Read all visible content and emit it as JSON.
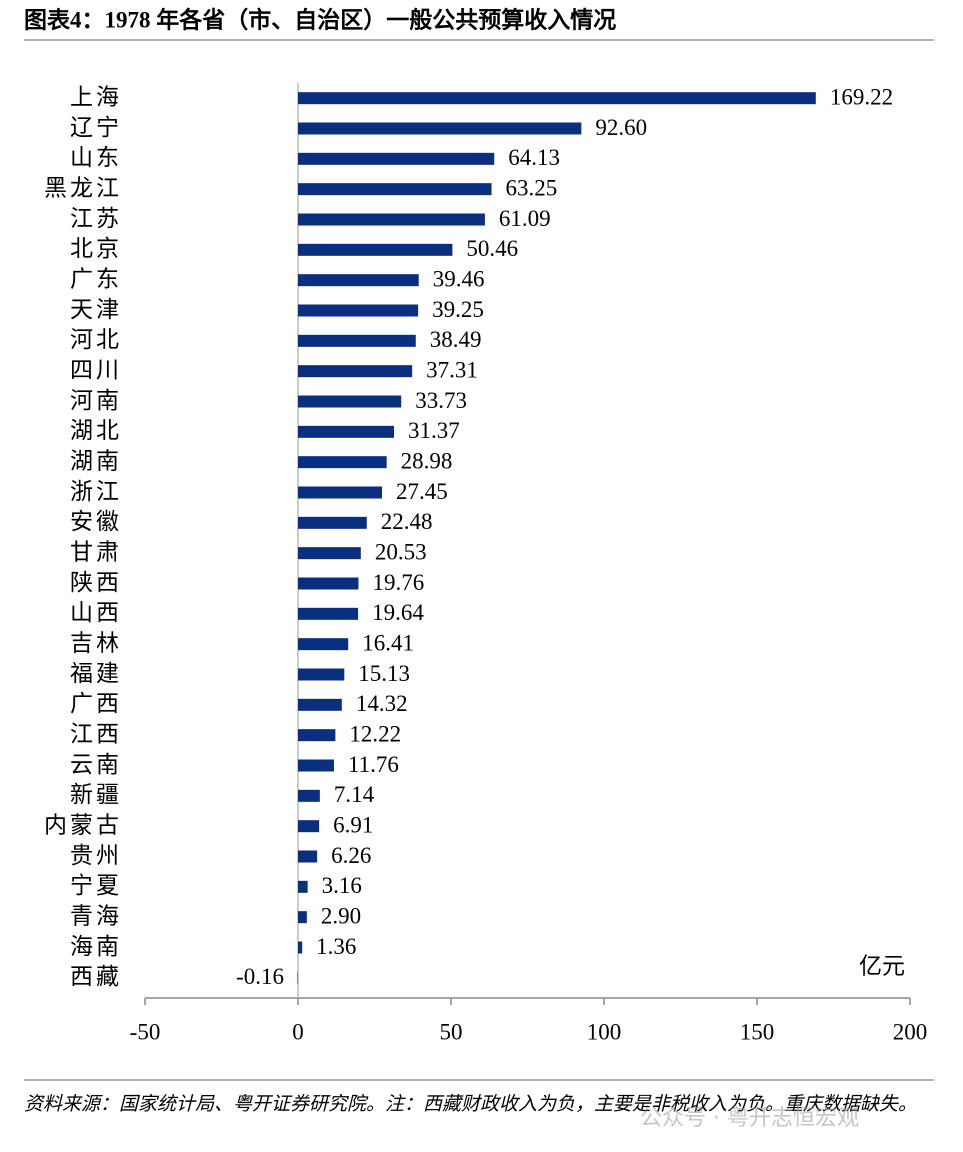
{
  "chart_data": {
    "type": "barh",
    "title": "图表4：1978 年各省（市、自治区）一般公共预算收入情况",
    "unit": "亿元",
    "categories": [
      "上海",
      "辽宁",
      "山东",
      "黑龙江",
      "江苏",
      "北京",
      "广东",
      "天津",
      "河北",
      "四川",
      "河南",
      "湖北",
      "湖南",
      "浙江",
      "安徽",
      "甘肃",
      "陕西",
      "山西",
      "吉林",
      "福建",
      "广西",
      "江西",
      "云南",
      "新疆",
      "内蒙古",
      "贵州",
      "宁夏",
      "青海",
      "海南",
      "西藏"
    ],
    "values": [
      169.22,
      92.6,
      64.13,
      63.25,
      61.09,
      50.46,
      39.46,
      39.25,
      38.49,
      37.31,
      33.73,
      31.37,
      28.98,
      27.45,
      22.48,
      20.53,
      19.76,
      19.64,
      16.41,
      15.13,
      14.32,
      12.22,
      11.76,
      7.14,
      6.91,
      6.26,
      3.16,
      2.9,
      1.36,
      -0.16
    ],
    "value_labels": [
      "169.22",
      "92.60",
      "64.13",
      "63.25",
      "61.09",
      "50.46",
      "39.46",
      "39.25",
      "38.49",
      "37.31",
      "33.73",
      "31.37",
      "28.98",
      "27.45",
      "22.48",
      "20.53",
      "19.76",
      "19.64",
      "16.41",
      "15.13",
      "14.32",
      "12.22",
      "11.76",
      "7.14",
      "6.91",
      "6.26",
      "3.16",
      "2.90",
      "1.36",
      "-0.16"
    ],
    "color": "#0b2f7f",
    "xlim": [
      -50,
      200
    ],
    "xticks": [
      -50,
      0,
      50,
      100,
      150,
      200
    ],
    "source": "资料来源：国家统计局、粤开证券研究院。注：西藏财政收入为负，主要是非税收入为负。重庆数据缺失。",
    "watermark": "公众号 · 粤开志恒宏观"
  }
}
